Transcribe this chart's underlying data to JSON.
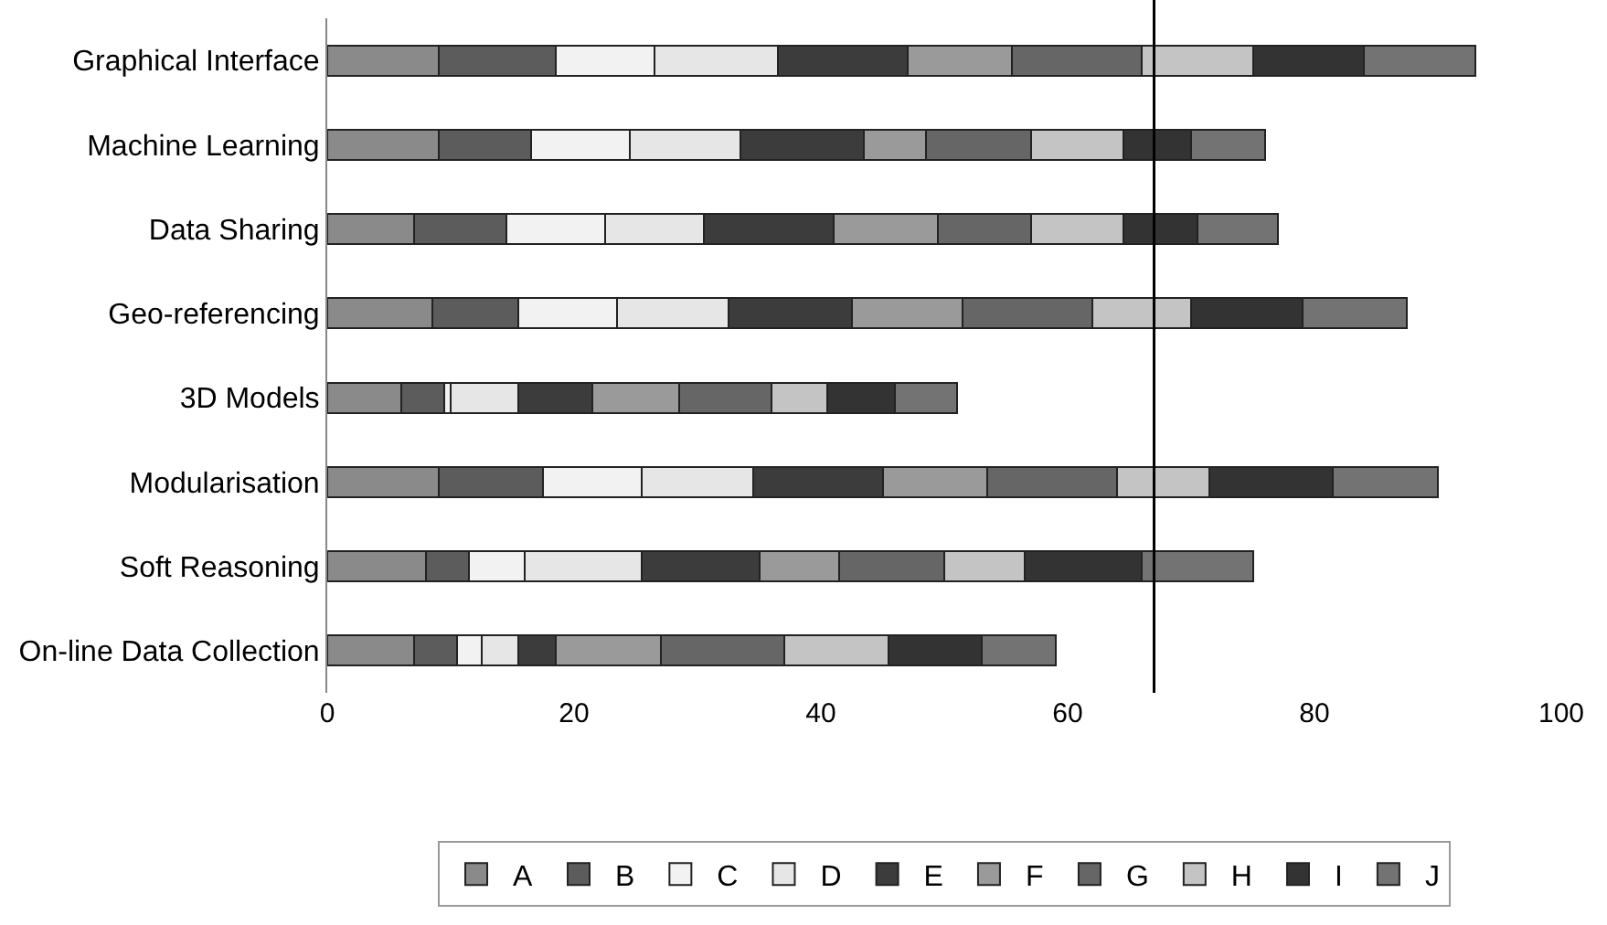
{
  "chart_data": {
    "type": "bar",
    "orientation": "horizontal",
    "stacked": true,
    "categories": [
      "Graphical Interface",
      "Machine Learning",
      "Data Sharing",
      "Geo-referencing",
      "3D Models",
      "Modularisation",
      "Soft Reasoning",
      "On-line Data Collection"
    ],
    "series": [
      {
        "name": "A",
        "color": "#8a8a8a",
        "values": [
          9,
          9,
          7,
          8.5,
          6,
          9,
          8,
          7
        ]
      },
      {
        "name": "B",
        "color": "#5c5c5c",
        "values": [
          9.5,
          7.5,
          7.5,
          7,
          3.5,
          8.5,
          3.5,
          3.5
        ]
      },
      {
        "name": "C",
        "color": "#f2f2f2",
        "values": [
          8,
          8,
          8,
          8,
          0.5,
          8,
          4.5,
          2
        ]
      },
      {
        "name": "D",
        "color": "#e6e6e6",
        "values": [
          10,
          9,
          8,
          9,
          5.5,
          9,
          9.5,
          3
        ]
      },
      {
        "name": "E",
        "color": "#3c3c3c",
        "values": [
          10.5,
          10,
          10.5,
          10,
          6,
          10.5,
          9.5,
          3
        ]
      },
      {
        "name": "F",
        "color": "#9a9a9a",
        "values": [
          8.5,
          5,
          8.5,
          9,
          7,
          8.5,
          6.5,
          8.5
        ]
      },
      {
        "name": "G",
        "color": "#666666",
        "values": [
          10.5,
          8.5,
          7.5,
          10.5,
          7.5,
          10.5,
          8.5,
          10
        ]
      },
      {
        "name": "H",
        "color": "#c4c4c4",
        "values": [
          9,
          7.5,
          7.5,
          8,
          4.5,
          7.5,
          6.5,
          8.5
        ]
      },
      {
        "name": "I",
        "color": "#333333",
        "values": [
          9,
          5.5,
          6,
          9,
          5.5,
          10,
          9.5,
          7.5
        ]
      },
      {
        "name": "J",
        "color": "#737373",
        "values": [
          9,
          6,
          6.5,
          8.5,
          5,
          8.5,
          9,
          6
        ]
      }
    ],
    "xlim": [
      0,
      100
    ],
    "xticks": [
      0,
      20,
      40,
      60,
      80,
      100
    ],
    "ref_lines": [
      {
        "axis": "x",
        "value": 67,
        "color": "#000000"
      }
    ],
    "grid": false,
    "legend": "bottom"
  }
}
